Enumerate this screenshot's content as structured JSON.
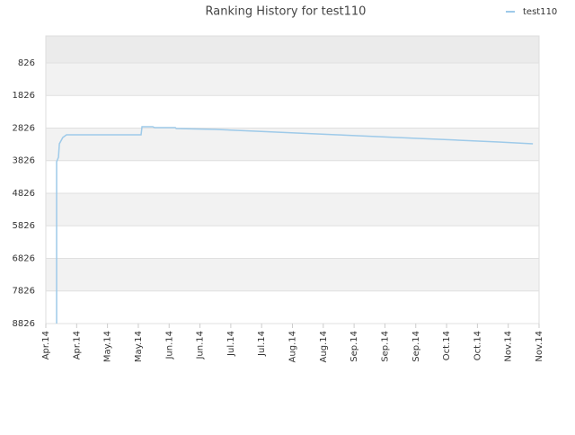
{
  "chart_data": {
    "type": "line",
    "title": "Ranking History for test110",
    "xlim": [
      0,
      16
    ],
    "xticks": [
      {
        "value": 0,
        "label": "Apr.14"
      },
      {
        "value": 1,
        "label": "Apr.14"
      },
      {
        "value": 2,
        "label": "May.14"
      },
      {
        "value": 3,
        "label": "May.14"
      },
      {
        "value": 4,
        "label": "Jun.14"
      },
      {
        "value": 5,
        "label": "Jun.14"
      },
      {
        "value": 6,
        "label": "Jul.14"
      },
      {
        "value": 7,
        "label": "Jul.14"
      },
      {
        "value": 8,
        "label": "Aug.14"
      },
      {
        "value": 9,
        "label": "Aug.14"
      },
      {
        "value": 10,
        "label": "Sep.14"
      },
      {
        "value": 11,
        "label": "Sep.14"
      },
      {
        "value": 12,
        "label": "Sep.14"
      },
      {
        "value": 13,
        "label": "Oct.14"
      },
      {
        "value": 14,
        "label": "Oct.14"
      },
      {
        "value": 15,
        "label": "Nov.14"
      },
      {
        "value": 16,
        "label": "Nov.14"
      }
    ],
    "ylim": [
      8826,
      0
    ],
    "yticks": [
      826,
      1826,
      2826,
      3826,
      4826,
      5826,
      6826,
      7826,
      8826
    ],
    "grid": true,
    "legend": "top-right",
    "series": [
      {
        "name": "test110",
        "color": "#9ecae9",
        "x": [
          0.35,
          0.35,
          0.41,
          0.44,
          0.55,
          0.67,
          3.09,
          3.12,
          3.47,
          3.53,
          4.2,
          4.23,
          5.51,
          6.15,
          6.82,
          8.13,
          9.45,
          10.76,
          12.07,
          13.38,
          14.69,
          15.8
        ],
        "values": [
          8826,
          3861,
          3723,
          3310,
          3116,
          3034,
          3034,
          2785,
          2785,
          2813,
          2813,
          2841,
          2868,
          2896,
          2923,
          2979,
          3034,
          3089,
          3144,
          3199,
          3254,
          3310
        ]
      }
    ]
  }
}
